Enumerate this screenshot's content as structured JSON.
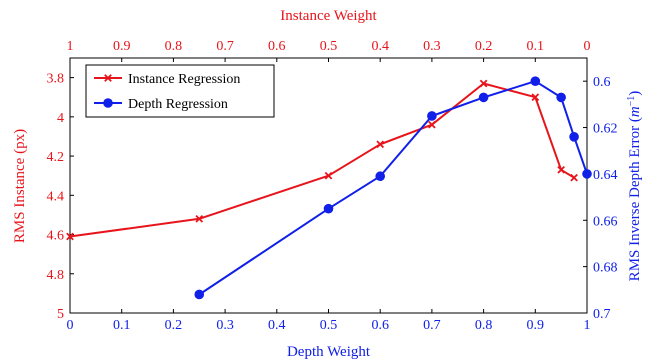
{
  "chart_data": {
    "type": "line",
    "title": "",
    "x_top": {
      "label": "Instance Weight",
      "range": [
        1,
        0
      ],
      "ticks": [
        1,
        0.9,
        0.8,
        0.7,
        0.6,
        0.5,
        0.4,
        0.3,
        0.2,
        0.1,
        0
      ],
      "tick_labels": [
        "1",
        "0.9",
        "0.8",
        "0.7",
        "0.6",
        "0.5",
        "0.4",
        "0.3",
        "0.2",
        "0.1",
        "0"
      ],
      "color": "#e8141b"
    },
    "x_bottom": {
      "label": "Depth Weight",
      "range": [
        0,
        1
      ],
      "ticks": [
        0,
        0.1,
        0.2,
        0.3,
        0.4,
        0.5,
        0.6,
        0.7,
        0.8,
        0.9,
        1
      ],
      "tick_labels": [
        "0",
        "0.1",
        "0.2",
        "0.3",
        "0.4",
        "0.5",
        "0.6",
        "0.7",
        "0.8",
        "0.9",
        "1"
      ],
      "color": "#1020e8"
    },
    "y_left": {
      "label": "RMS Instance (px)",
      "range": [
        3.7,
        5
      ],
      "inverted": true,
      "ticks": [
        3.8,
        4,
        4.2,
        4.4,
        4.6,
        4.8,
        5
      ],
      "tick_labels": [
        "3.8",
        "4",
        "4.2",
        "4.4",
        "4.6",
        "4.8",
        "5"
      ],
      "color": "#e8141b"
    },
    "y_right": {
      "label": "RMS Inverse Depth Error (m⁻¹)",
      "label_main": "RMS Inverse Depth Error (",
      "label_var": "m",
      "label_sup": "−1",
      "label_end": ")",
      "range": [
        0.59,
        0.7
      ],
      "inverted": true,
      "ticks": [
        0.6,
        0.62,
        0.64,
        0.66,
        0.68,
        0.7
      ],
      "tick_labels": [
        "0.6",
        "0.62",
        "0.64",
        "0.66",
        "0.68",
        "0.7"
      ],
      "color": "#1020e8"
    },
    "series": [
      {
        "name": "Instance Regression",
        "axis": "left",
        "color": "#e8141b",
        "marker": "x",
        "x": [
          0,
          0.25,
          0.5,
          0.6,
          0.7,
          0.8,
          0.9,
          0.95,
          0.975
        ],
        "y": [
          4.61,
          4.52,
          4.3,
          4.14,
          4.04,
          3.83,
          3.9,
          4.27,
          4.31
        ]
      },
      {
        "name": "Depth Regression",
        "axis": "right",
        "color": "#1020e8",
        "marker": "circle",
        "x": [
          0.25,
          0.5,
          0.6,
          0.7,
          0.8,
          0.9,
          0.95,
          0.975,
          1
        ],
        "y": [
          0.692,
          0.655,
          0.641,
          0.615,
          0.607,
          0.6,
          0.607,
          0.624,
          0.64
        ]
      }
    ],
    "legend": {
      "placement": "top-left"
    },
    "grid": false
  }
}
